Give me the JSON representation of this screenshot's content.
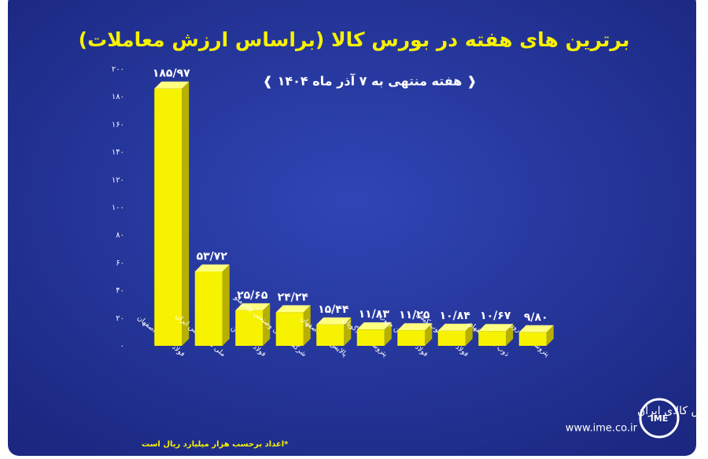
{
  "chart_data": {
    "type": "bar3d",
    "title": "برترین های هفته در بورس کالا (براساس ارزش معاملات)",
    "subtitle": "❰ هفته منتهی به ۷ آذر ماه ۱۴۰۴ ❱",
    "categories": [
      "فولاد مبارکه اصفهان",
      "ملی صنایع مس ایران",
      "فولاد خوزستان",
      "شرکت معدنی وصنعتی چادرملو",
      "پالایش نفت اصفهان",
      "پتروشیمی تندگویان",
      "فولاد هرمزگان جنوب",
      "فولاد کاوه جنوب کیش",
      "ذوب آهن اصفهان",
      "پتروشیمی مارون"
    ],
    "values": [
      185.97,
      53.72,
      25.65,
      24.24,
      15.44,
      11.83,
      11.25,
      10.84,
      10.67,
      9.8
    ],
    "value_labels": [
      "۱۸۵/۹۷",
      "۵۳/۷۲",
      "۲۵/۶۵",
      "۲۴/۲۴",
      "۱۵/۴۴",
      "۱۱/۸۳",
      "۱۱/۲۵",
      "۱۰/۸۴",
      "۱۰/۶۷",
      "۹/۸۰"
    ],
    "color": "#f7f200",
    "ylim": [
      0,
      200
    ],
    "yticks": [
      {
        "value": 0,
        "label": "۰"
      },
      {
        "value": 20,
        "label": "۲۰"
      },
      {
        "value": 40,
        "label": "۴۰"
      },
      {
        "value": 60,
        "label": "۶۰"
      },
      {
        "value": 80,
        "label": "۸۰"
      },
      {
        "value": 100,
        "label": "۱۰۰"
      },
      {
        "value": 120,
        "label": "۱۲۰"
      },
      {
        "value": 140,
        "label": "۱۴۰"
      },
      {
        "value": 160,
        "label": "۱۶۰"
      },
      {
        "value": 180,
        "label": "۱۸۰"
      },
      {
        "value": 200,
        "label": "۲۰۰"
      }
    ],
    "footnote": "*اعداد برحسب هزار میلیارد ریال است",
    "logo": {
      "name": "بورس کالای ایران",
      "url": "www.ime.co.ir",
      "mark": "IME"
    }
  }
}
